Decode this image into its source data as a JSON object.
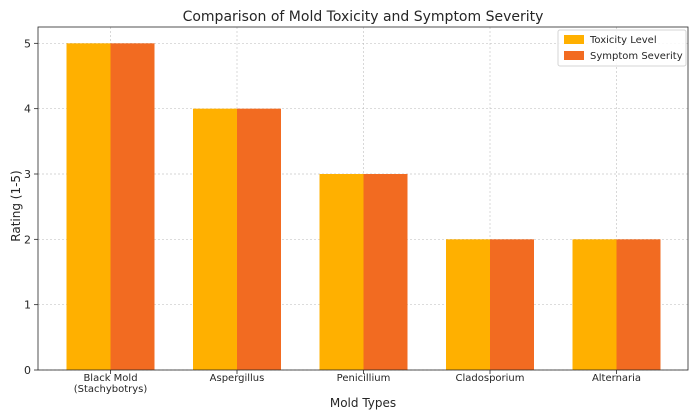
{
  "chart_data": {
    "type": "bar",
    "title": "Comparison of Mold Toxicity and Symptom Severity",
    "xlabel": "Mold Types",
    "ylabel": "Rating (1-5)",
    "categories": [
      [
        "Black Mold",
        "(Stachybotrys)"
      ],
      [
        "Aspergillus"
      ],
      [
        "Penicillium"
      ],
      [
        "Cladosporium"
      ],
      [
        "Alternaria"
      ]
    ],
    "series": [
      {
        "name": "Toxicity Level",
        "values": [
          5,
          4,
          3,
          2,
          2
        ],
        "color": "#FFB000"
      },
      {
        "name": "Symptom Severity",
        "values": [
          5,
          4,
          3,
          2,
          2
        ],
        "color": "#F26B21"
      }
    ],
    "ylim": [
      0,
      5.25
    ],
    "yticks": [
      0,
      1,
      2,
      3,
      4,
      5
    ],
    "grid": true,
    "legend": "top-right"
  }
}
